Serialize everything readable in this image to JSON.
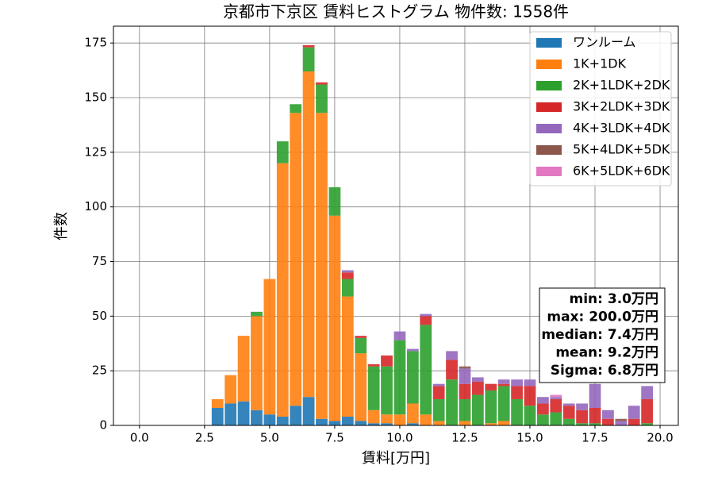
{
  "chart_data": {
    "type": "stacked_histogram",
    "title": "京都市下京区 賃料ヒストグラム  物件数: 1558件",
    "x_label": "賃料[万円]",
    "y_label": "件数",
    "bins": [
      2.75,
      3.25,
      3.75,
      4.25,
      4.75,
      5.25,
      5.75,
      6.25,
      6.75,
      7.25,
      7.75,
      8.25,
      8.75,
      9.25,
      9.75,
      10.25,
      10.75,
      11.25,
      11.75,
      12.25,
      12.75,
      13.25,
      13.75,
      14.25,
      14.75,
      15.25,
      15.75,
      16.25,
      16.75,
      17.25,
      17.75,
      18.25,
      18.75,
      19.25,
      19.75
    ],
    "series": [
      {
        "name": "ワンルーム",
        "color": "#1f77b4",
        "values": [
          8,
          10,
          11,
          7,
          5,
          4,
          9,
          13,
          3,
          2,
          4,
          2,
          1,
          1,
          0,
          1,
          0,
          0,
          0,
          0,
          0,
          0,
          0,
          0,
          0,
          0,
          0,
          0,
          0,
          0,
          0,
          0,
          0,
          0
        ]
      },
      {
        "name": "1K+1DK",
        "color": "#ff7f0e",
        "values": [
          4,
          13,
          30,
          43,
          62,
          116,
          134,
          149,
          140,
          94,
          55,
          31,
          6,
          4,
          5,
          9,
          5,
          2,
          0,
          2,
          0,
          1,
          2,
          0,
          0,
          0,
          0,
          0,
          0,
          0,
          0,
          0,
          0,
          0
        ]
      },
      {
        "name": "2K+1LDK+2DK",
        "color": "#2ca02c",
        "values": [
          0,
          0,
          0,
          2,
          0,
          10,
          4,
          11,
          13,
          13,
          8,
          7,
          20,
          22,
          34,
          24,
          41,
          10,
          21,
          10,
          14,
          15,
          16,
          12,
          9,
          5,
          6,
          3,
          1,
          1,
          0,
          0,
          0,
          1
        ]
      },
      {
        "name": "3K+2LDK+3DK",
        "color": "#d62728",
        "values": [
          0,
          0,
          0,
          0,
          0,
          0,
          0,
          1,
          1,
          0,
          3,
          1,
          1,
          5,
          0,
          0,
          4,
          6,
          9,
          7,
          6,
          3,
          1,
          6,
          9,
          5,
          6,
          6,
          6,
          7,
          3,
          0,
          3,
          11
        ]
      },
      {
        "name": "4K+3LDK+4DK",
        "color": "#9467bd",
        "values": [
          0,
          0,
          0,
          0,
          0,
          0,
          0,
          0,
          0,
          0,
          1,
          0,
          0,
          0,
          4,
          1,
          1,
          1,
          4,
          7,
          2,
          0,
          2,
          3,
          3,
          3,
          1,
          1,
          3,
          11,
          4,
          2,
          6,
          6
        ]
      },
      {
        "name": "5K+4LDK+5DK",
        "color": "#8c564b",
        "values": [
          0,
          0,
          0,
          0,
          0,
          0,
          0,
          0,
          0,
          0,
          0,
          0,
          0,
          0,
          0,
          0,
          0,
          0,
          0,
          1,
          0,
          0,
          0,
          0,
          0,
          0,
          0,
          0,
          0,
          0,
          0,
          1,
          0,
          0
        ]
      },
      {
        "name": "6K+5LDK+6DK",
        "color": "#e377c2",
        "values": [
          0,
          0,
          0,
          0,
          0,
          0,
          0,
          0,
          0,
          0,
          0,
          0,
          0,
          0,
          0,
          0,
          0,
          0,
          0,
          0,
          0,
          0,
          0,
          0,
          0,
          0,
          1,
          0,
          0,
          0,
          0,
          0,
          0,
          0
        ]
      }
    ],
    "xlim": [
      -1,
      20.7
    ],
    "ylim": [
      0,
      182.7
    ],
    "xticks": [
      {
        "value": 0,
        "label": "0.0"
      },
      {
        "value": 2.5,
        "label": "2.5"
      },
      {
        "value": 5,
        "label": "5.0"
      },
      {
        "value": 7.5,
        "label": "7.5"
      },
      {
        "value": 10,
        "label": "10.0"
      },
      {
        "value": 12.5,
        "label": "12.5"
      },
      {
        "value": 15,
        "label": "15.0"
      },
      {
        "value": 17.5,
        "label": "17.5"
      },
      {
        "value": 20,
        "label": "20.0"
      }
    ],
    "yticks": [
      0,
      25,
      50,
      75,
      100,
      125,
      150,
      175
    ],
    "grid": true,
    "legend": "upper right",
    "stats": [
      "min: 3.0万円",
      "max: 200.0万円",
      "median: 7.4万円",
      "mean: 9.2万円",
      "Sigma: 6.8万円"
    ]
  }
}
